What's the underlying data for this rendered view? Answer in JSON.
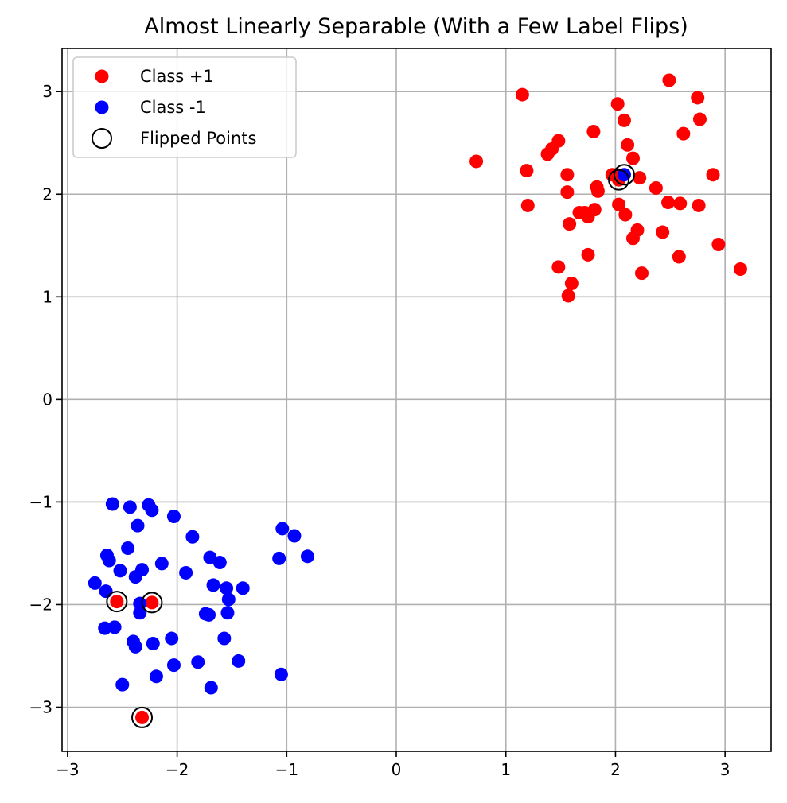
{
  "chart_data": {
    "type": "scatter",
    "title": "Almost Linearly Separable (With a Few Label Flips)",
    "xlabel": "",
    "ylabel": "",
    "xlim": [
      -3.05,
      3.42
    ],
    "ylim": [
      -3.43,
      3.42
    ],
    "x_ticks": [
      -3,
      -2,
      -1,
      0,
      1,
      2,
      3
    ],
    "y_ticks": [
      -3,
      -2,
      -1,
      0,
      1,
      2,
      3
    ],
    "x_tick_labels": [
      "−3",
      "−2",
      "−1",
      "0",
      "1",
      "2",
      "3"
    ],
    "y_tick_labels": [
      "−3",
      "−2",
      "−1",
      "0",
      "1",
      "2",
      "3"
    ],
    "grid": true,
    "legend_position": "top-left",
    "series": [
      {
        "name": "Class +1",
        "color": "#ff0000",
        "marker": "filled-circle",
        "points": [
          [
            0.73,
            2.32
          ],
          [
            1.15,
            2.97
          ],
          [
            1.19,
            2.23
          ],
          [
            1.2,
            1.89
          ],
          [
            1.38,
            2.39
          ],
          [
            1.42,
            2.44
          ],
          [
            1.48,
            2.52
          ],
          [
            1.48,
            1.29
          ],
          [
            1.56,
            2.19
          ],
          [
            1.56,
            2.02
          ],
          [
            1.58,
            1.71
          ],
          [
            1.57,
            1.01
          ],
          [
            1.6,
            1.13
          ],
          [
            1.67,
            1.82
          ],
          [
            1.72,
            1.82
          ],
          [
            1.75,
            1.78
          ],
          [
            1.75,
            1.41
          ],
          [
            1.8,
            2.61
          ],
          [
            1.81,
            1.85
          ],
          [
            1.83,
            2.07
          ],
          [
            1.84,
            2.03
          ],
          [
            1.97,
            2.19
          ],
          [
            2.01,
            2.19
          ],
          [
            2.02,
            2.88
          ],
          [
            2.03,
            1.9
          ],
          [
            2.08,
            2.72
          ],
          [
            2.09,
            1.8
          ],
          [
            2.11,
            2.48
          ],
          [
            2.16,
            2.35
          ],
          [
            2.16,
            1.57
          ],
          [
            2.2,
            1.65
          ],
          [
            2.22,
            2.16
          ],
          [
            2.24,
            1.23
          ],
          [
            2.37,
            2.06
          ],
          [
            2.43,
            1.63
          ],
          [
            2.48,
            1.92
          ],
          [
            2.49,
            3.11
          ],
          [
            2.58,
            1.39
          ],
          [
            2.59,
            1.91
          ],
          [
            2.62,
            2.59
          ],
          [
            2.75,
            2.94
          ],
          [
            2.76,
            1.89
          ],
          [
            2.77,
            2.73
          ],
          [
            2.89,
            2.19
          ],
          [
            2.94,
            1.51
          ],
          [
            3.14,
            1.27
          ],
          [
            2.03,
            2.14
          ],
          [
            -2.55,
            -1.97
          ],
          [
            -2.23,
            -1.98
          ],
          [
            -2.32,
            -3.1
          ]
        ]
      },
      {
        "name": "Class -1",
        "color": "#0000ff",
        "marker": "filled-circle",
        "points": [
          [
            -2.75,
            -1.79
          ],
          [
            -2.66,
            -2.23
          ],
          [
            -2.65,
            -1.87
          ],
          [
            -2.64,
            -1.52
          ],
          [
            -2.62,
            -1.57
          ],
          [
            -2.59,
            -1.02
          ],
          [
            -2.57,
            -2.22
          ],
          [
            -2.52,
            -1.67
          ],
          [
            -2.5,
            -2.78
          ],
          [
            -2.45,
            -1.45
          ],
          [
            -2.43,
            -1.05
          ],
          [
            -2.4,
            -2.36
          ],
          [
            -2.38,
            -1.73
          ],
          [
            -2.38,
            -2.41
          ],
          [
            -2.36,
            -1.23
          ],
          [
            -2.34,
            -2.08
          ],
          [
            -2.34,
            -1.99
          ],
          [
            -2.32,
            -1.66
          ],
          [
            -2.26,
            -1.03
          ],
          [
            -2.23,
            -1.08
          ],
          [
            -2.22,
            -2.38
          ],
          [
            -2.19,
            -2.7
          ],
          [
            -2.14,
            -1.6
          ],
          [
            -2.05,
            -2.33
          ],
          [
            -2.03,
            -2.59
          ],
          [
            -2.03,
            -1.14
          ],
          [
            -1.92,
            -1.69
          ],
          [
            -1.86,
            -1.34
          ],
          [
            -1.81,
            -2.56
          ],
          [
            -1.74,
            -2.09
          ],
          [
            -1.71,
            -2.1
          ],
          [
            -1.7,
            -1.54
          ],
          [
            -1.69,
            -2.81
          ],
          [
            -1.67,
            -1.81
          ],
          [
            -1.61,
            -1.59
          ],
          [
            -1.57,
            -2.33
          ],
          [
            -1.55,
            -1.84
          ],
          [
            -1.54,
            -2.08
          ],
          [
            -1.53,
            -1.95
          ],
          [
            -1.44,
            -2.55
          ],
          [
            -1.4,
            -1.84
          ],
          [
            -1.07,
            -1.55
          ],
          [
            -1.05,
            -2.68
          ],
          [
            -1.04,
            -1.26
          ],
          [
            -0.93,
            -1.33
          ],
          [
            -0.81,
            -1.53
          ],
          [
            2.08,
            2.19
          ]
        ]
      },
      {
        "name": "Flipped Points",
        "color": "#000000",
        "marker": "open-circle",
        "points": [
          [
            2.03,
            2.14
          ],
          [
            2.08,
            2.19
          ],
          [
            -2.55,
            -1.97
          ],
          [
            -2.23,
            -1.98
          ],
          [
            -2.32,
            -3.1
          ]
        ]
      }
    ]
  }
}
